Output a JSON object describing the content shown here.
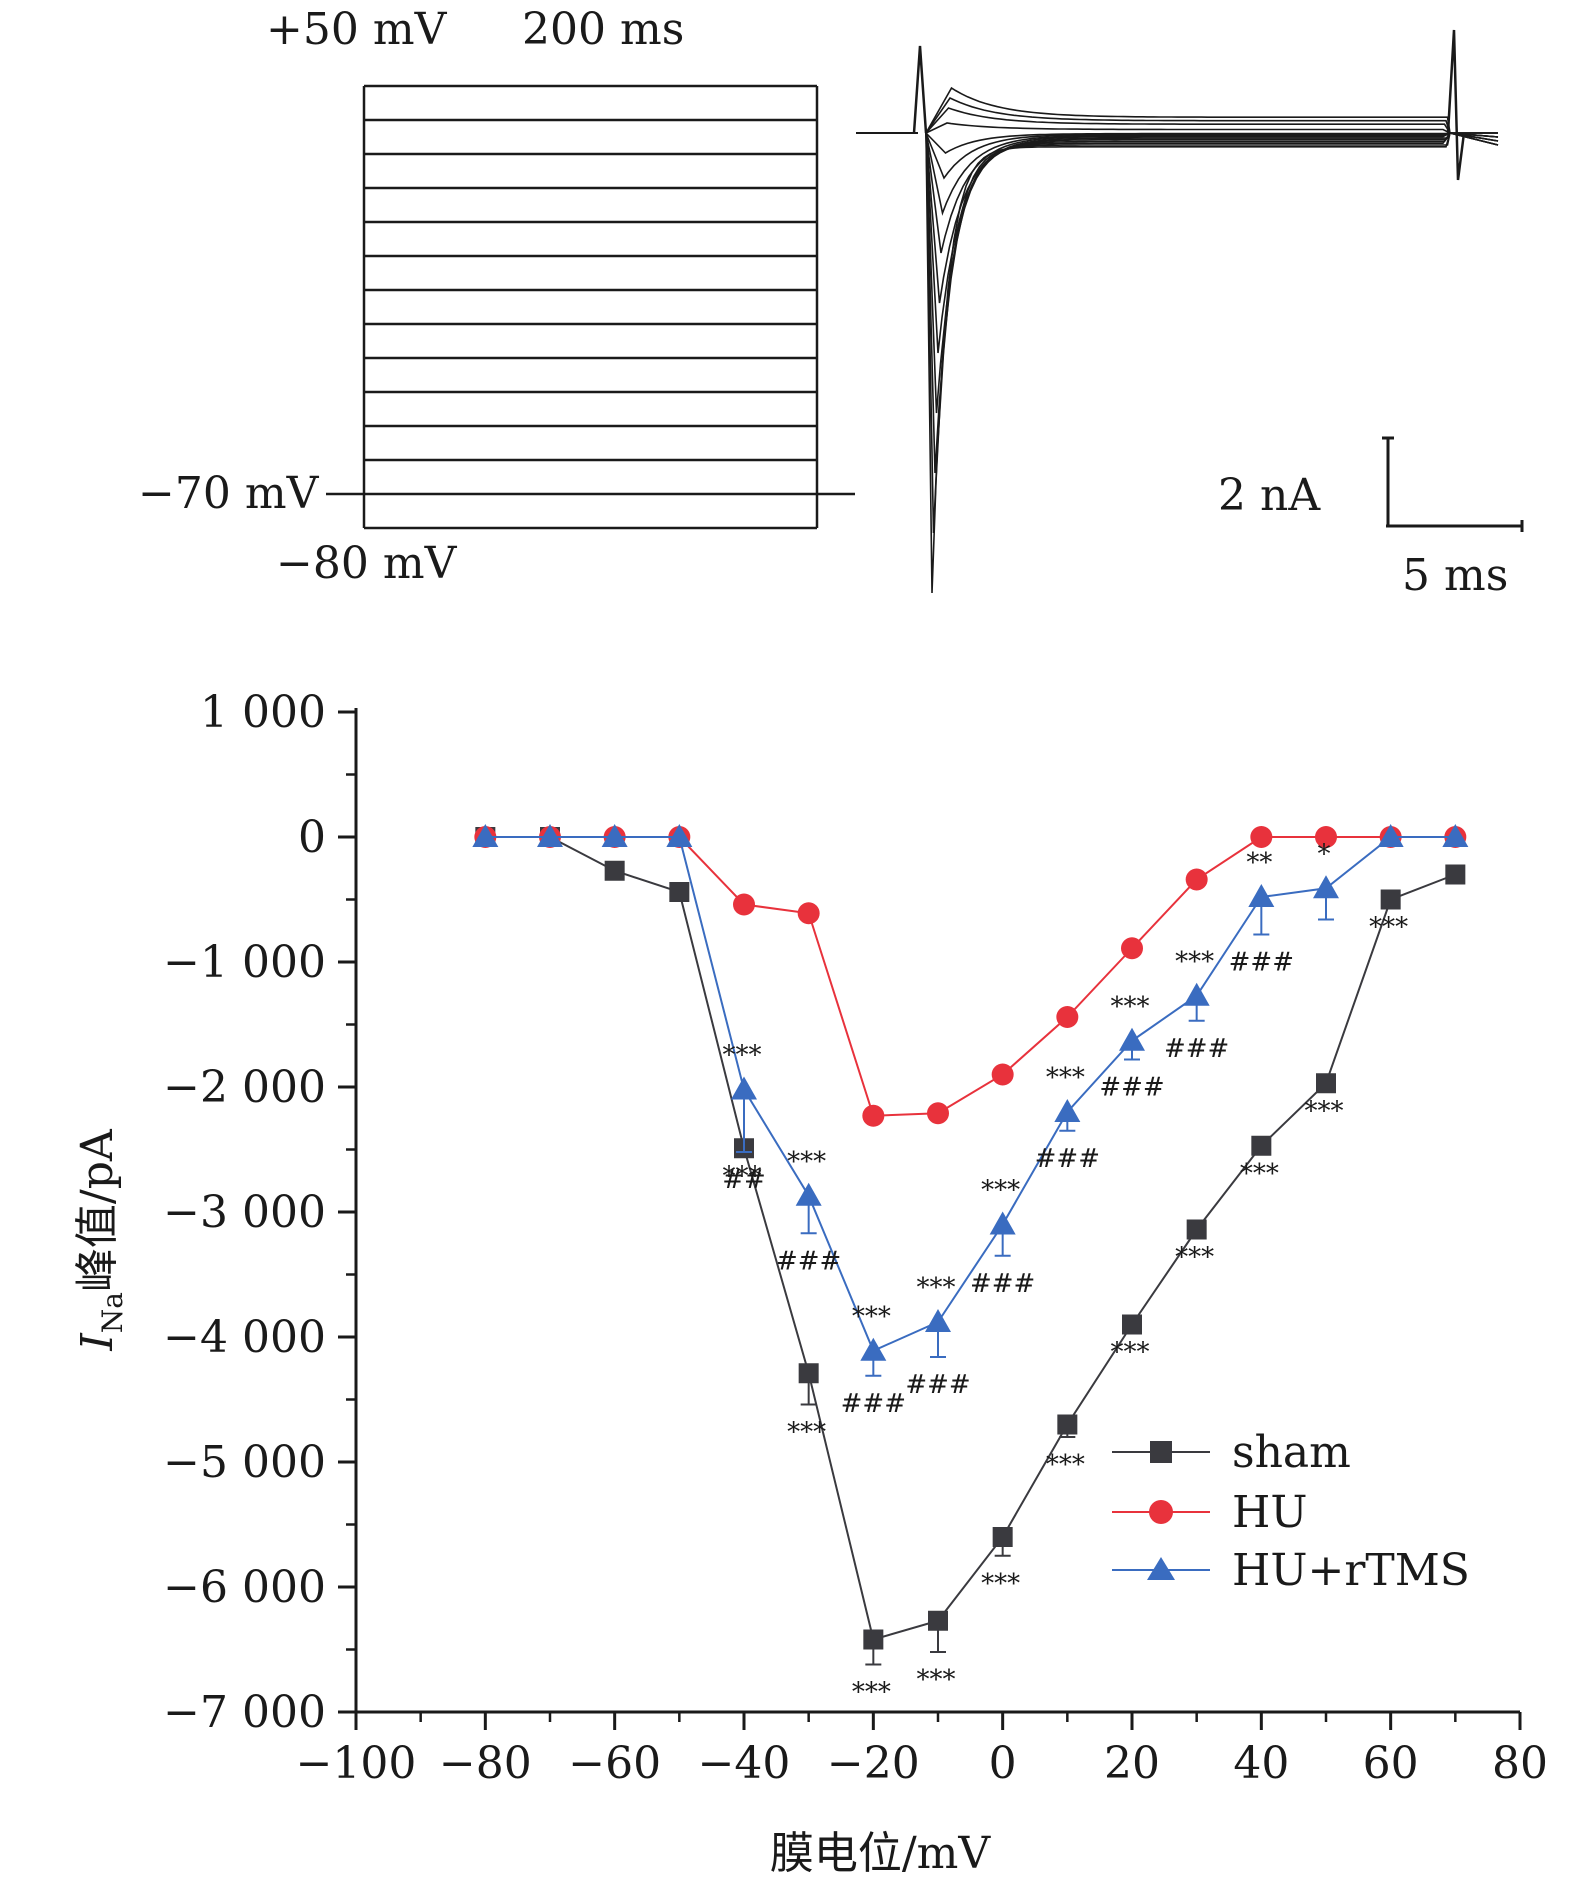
{
  "panel_top": {
    "protocol": {
      "label_top_voltage": "+50 mV",
      "label_duration": "200 ms",
      "label_hold": "−70 mV",
      "label_bottom": "−80 mV",
      "steps_mV": [
        50,
        40,
        30,
        20,
        10,
        0,
        -10,
        -20,
        -30,
        -40,
        -50,
        -60,
        -70,
        -80
      ]
    },
    "scale_bar": {
      "current_label": "2 nA",
      "time_label": "5 ms"
    }
  },
  "chart_data": {
    "type": "line",
    "x": [
      -80,
      -70,
      -60,
      -50,
      -40,
      -30,
      -20,
      -10,
      0,
      10,
      20,
      30,
      40,
      50,
      60,
      70
    ],
    "xlabel": "膜电位/mV",
    "ylabel_main": "I",
    "ylabel_sub": "Na",
    "ylabel_rest": "峰值/pA",
    "xlim": [
      -100,
      80
    ],
    "ylim": [
      -7000,
      1000
    ],
    "x_ticks": [
      -100,
      -80,
      -60,
      -40,
      -20,
      0,
      20,
      40,
      60,
      80
    ],
    "x_tick_labels": [
      "−100",
      "−80",
      "−60",
      "−40",
      "−20",
      "0",
      "20",
      "40",
      "60",
      "80"
    ],
    "y_ticks": [
      1000,
      0,
      -1000,
      -2000,
      -3000,
      -4000,
      -5000,
      -6000,
      -7000
    ],
    "y_tick_labels": [
      "1 000",
      "0",
      "−1 000",
      "−2 000",
      "−3 000",
      "−4 000",
      "−5 000",
      "−6 000",
      "−7 000"
    ],
    "legend_position": "bottom-right",
    "series": [
      {
        "name": "sham",
        "color": "#3a3a3f",
        "marker": "square",
        "values": [
          0,
          0,
          -270,
          -440,
          -2490,
          -4290,
          -6420,
          -6270,
          -5600,
          -4700,
          -3900,
          -3140,
          -2470,
          -1970,
          -500,
          -300
        ],
        "errors": [
          0,
          0,
          0,
          0,
          0,
          250,
          200,
          250,
          150,
          100,
          0,
          0,
          0,
          0,
          0,
          0
        ],
        "annotations": [
          {
            "x": -40,
            "text": "***",
            "pos": "below"
          },
          {
            "x": -30,
            "text": "***",
            "pos": "below"
          },
          {
            "x": -20,
            "text": "***",
            "pos": "below"
          },
          {
            "x": -10,
            "text": "***",
            "pos": "below"
          },
          {
            "x": 0,
            "text": "***",
            "pos": "below"
          },
          {
            "x": 10,
            "text": "***",
            "pos": "below"
          },
          {
            "x": 20,
            "text": "***",
            "pos": "below"
          },
          {
            "x": 30,
            "text": "***",
            "pos": "below"
          },
          {
            "x": 40,
            "text": "***",
            "pos": "below"
          },
          {
            "x": 50,
            "text": "***",
            "pos": "below"
          },
          {
            "x": 60,
            "text": "***",
            "pos": "below"
          }
        ]
      },
      {
        "name": "HU",
        "color": "#e8323c",
        "marker": "circle",
        "values": [
          0,
          0,
          0,
          0,
          -540,
          -610,
          -2230,
          -2210,
          -1900,
          -1440,
          -890,
          -340,
          0,
          0,
          0,
          0
        ],
        "errors": [
          0,
          0,
          0,
          0,
          0,
          0,
          0,
          0,
          0,
          0,
          0,
          0,
          0,
          0,
          0,
          0
        ],
        "annotations": []
      },
      {
        "name": "HU+rTMS",
        "color": "#3a6cc0",
        "marker": "triangle",
        "values": [
          0,
          0,
          0,
          0,
          -2020,
          -2870,
          -4110,
          -3880,
          -3100,
          -2200,
          -1630,
          -1270,
          -480,
          -410,
          0,
          0
        ],
        "errors": [
          0,
          0,
          0,
          0,
          500,
          300,
          200,
          280,
          250,
          150,
          150,
          200,
          300,
          250,
          0,
          0
        ],
        "annotations": [
          {
            "x": -40,
            "text": "***",
            "pos": "above"
          },
          {
            "x": -40,
            "text": "##",
            "pos": "below"
          },
          {
            "x": -30,
            "text": "***",
            "pos": "above"
          },
          {
            "x": -30,
            "text": "###",
            "pos": "below"
          },
          {
            "x": -20,
            "text": "***",
            "pos": "above"
          },
          {
            "x": -20,
            "text": "###",
            "pos": "below"
          },
          {
            "x": -10,
            "text": "***",
            "pos": "above"
          },
          {
            "x": -10,
            "text": "###",
            "pos": "below"
          },
          {
            "x": 0,
            "text": "***",
            "pos": "above"
          },
          {
            "x": 0,
            "text": "###",
            "pos": "below"
          },
          {
            "x": 10,
            "text": "***",
            "pos": "above"
          },
          {
            "x": 10,
            "text": "###",
            "pos": "below"
          },
          {
            "x": 20,
            "text": "***",
            "pos": "above"
          },
          {
            "x": 20,
            "text": "###",
            "pos": "below"
          },
          {
            "x": 30,
            "text": "***",
            "pos": "above"
          },
          {
            "x": 30,
            "text": "###",
            "pos": "below"
          },
          {
            "x": 40,
            "text": "**",
            "pos": "above"
          },
          {
            "x": 40,
            "text": "###",
            "pos": "below"
          },
          {
            "x": 50,
            "text": "*",
            "pos": "above"
          }
        ]
      }
    ]
  }
}
